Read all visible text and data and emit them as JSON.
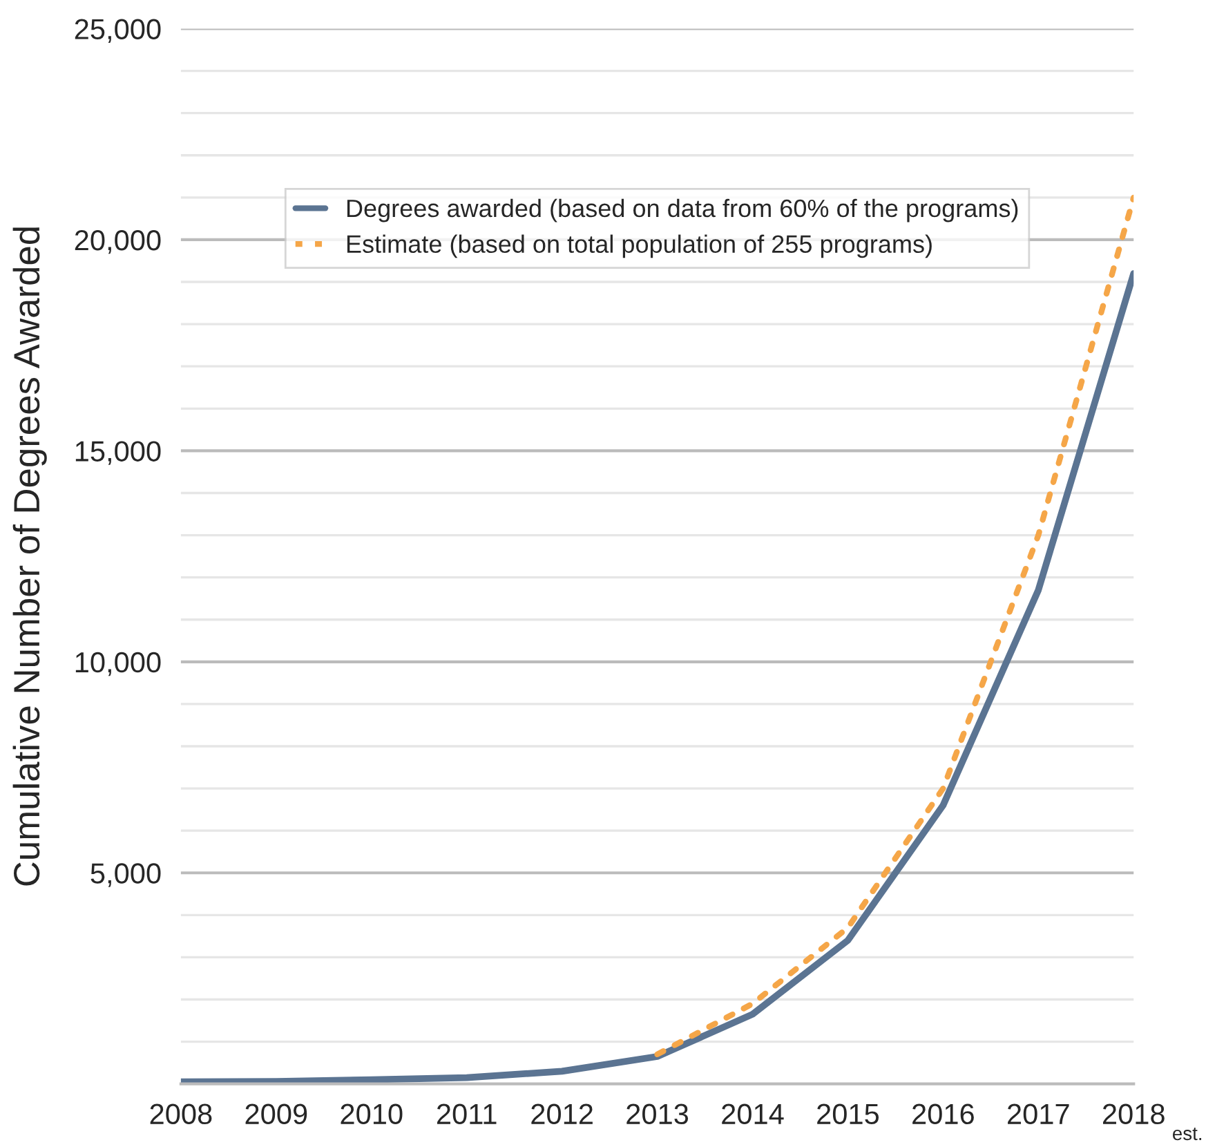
{
  "chart_data": {
    "type": "line",
    "ylabel": "Cumulative Number of Degrees Awarded",
    "categories": [
      "2008",
      "2009",
      "2010",
      "2011",
      "2012",
      "2013",
      "2014",
      "2015",
      "2016",
      "2017",
      "2018"
    ],
    "series": [
      {
        "name": "Degrees awarded (based on data from 60% of the programs)",
        "color": "#5b7492",
        "line_style": "solid",
        "values": [
          50,
          60,
          100,
          150,
          300,
          650,
          1650,
          3400,
          6600,
          11700,
          19200
        ]
      },
      {
        "name": "Estimate (based on total population of 255 programs)",
        "color": "#f5a648",
        "line_style": "dotted",
        "values": [
          null,
          null,
          null,
          null,
          null,
          700,
          1900,
          3700,
          7000,
          13000,
          21000
        ]
      }
    ],
    "annotations": [
      "est."
    ],
    "ylim": [
      0,
      25000
    ],
    "yticks": [
      {
        "value": 5000,
        "label": "5,000"
      },
      {
        "value": 10000,
        "label": "10,000"
      },
      {
        "value": 15000,
        "label": "15,000"
      },
      {
        "value": 20000,
        "label": "20,000"
      },
      {
        "value": 25000,
        "label": "25,000"
      }
    ],
    "grid": "y",
    "legend": "top",
    "marker": "none"
  }
}
